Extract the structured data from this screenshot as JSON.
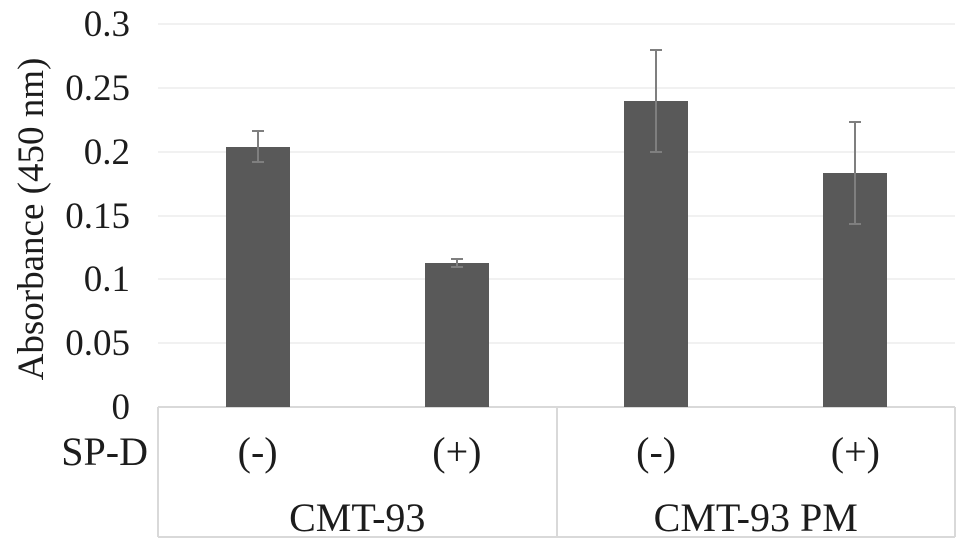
{
  "chart_data": {
    "type": "bar",
    "title": "",
    "ylabel": "Absorbance (450 nm)",
    "row_label": "SP-D",
    "ylim": [
      0,
      0.3
    ],
    "ytick_step": 0.05,
    "yticks": [
      {
        "value": 0.3,
        "label": "0.3"
      },
      {
        "value": 0.25,
        "label": "0.25"
      },
      {
        "value": 0.2,
        "label": "0.2"
      },
      {
        "value": 0.15,
        "label": "0.15"
      },
      {
        "value": 0.1,
        "label": "0.1"
      },
      {
        "value": 0.05,
        "label": "0.05"
      },
      {
        "value": 0,
        "label": "0"
      }
    ],
    "grid": true,
    "legend": "none",
    "groups": [
      {
        "label": "CMT-93",
        "bars": [
          {
            "category": "(-)",
            "value": 0.204,
            "error": 0.012
          },
          {
            "category": "(+)",
            "value": 0.113,
            "error": 0.003
          }
        ]
      },
      {
        "label": "CMT-93 PM",
        "bars": [
          {
            "category": "(-)",
            "value": 0.24,
            "error": 0.04
          },
          {
            "category": "(+)",
            "value": 0.183,
            "error": 0.04
          }
        ]
      }
    ],
    "colors": {
      "bar": "#595959",
      "error_bar": "#7f7f7f",
      "gridline": "#f1f1f1",
      "frame": "#d9d9d9",
      "text": "#1c1c1c",
      "background": "#ffffff"
    }
  }
}
